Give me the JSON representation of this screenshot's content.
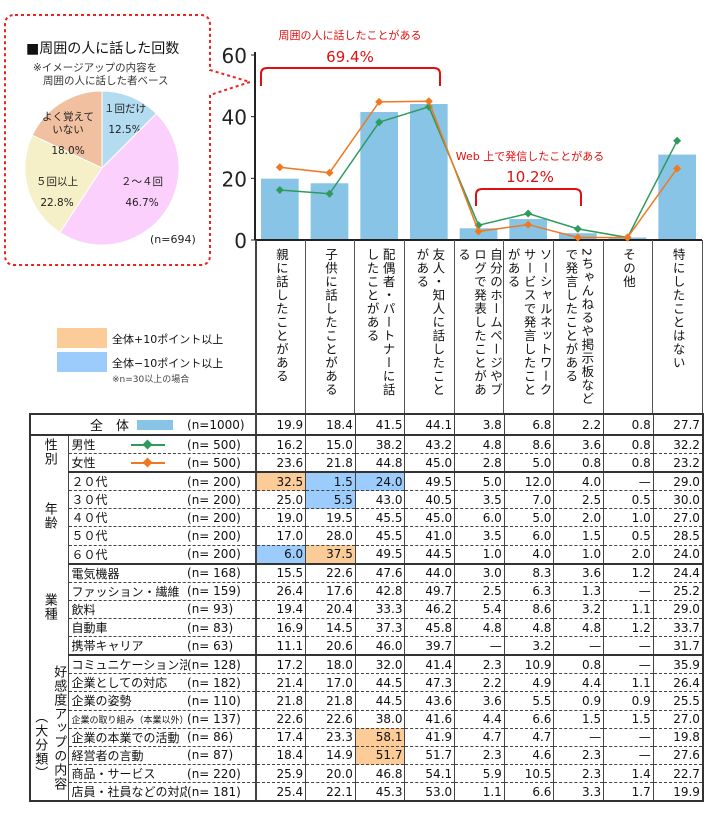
{
  "pie": {
    "title": "■周囲の人に話した回数",
    "note_line1": "※イメージアップの内容を",
    "note_line2": "周囲の人に話した者ベース",
    "n_label": "(n=694)",
    "slices": [
      {
        "label": "１回だけ",
        "value": 12.5,
        "value_label": "12.5%",
        "color": "#b4dcf0"
      },
      {
        "label": "２～４回",
        "value": 46.7,
        "value_label": "46.7%",
        "color": "#fcd0fc"
      },
      {
        "label": "５回以上",
        "value": 22.8,
        "value_label": "22.8%",
        "color": "#f5f0c8"
      },
      {
        "label": "よく覚えて\nいない",
        "value": 18.0,
        "value_label": "18.0%",
        "color": "#f0c0a0"
      }
    ]
  },
  "legend": {
    "plus_label": "全体+10ポイント以上",
    "minus_label": "全体−10ポイント以上",
    "note": "※n=30以上の場合",
    "plus_color": "#fccc98",
    "minus_color": "#9cccfc"
  },
  "annotations": {
    "a1_text": "周囲の人に話したことがある",
    "a1_value": "69.4%",
    "a2_text": "Web 上で発信したことがある",
    "a2_value": "10.2%",
    "color": "#e01010"
  },
  "chart_data": {
    "type": "bar",
    "ylim": [
      0,
      60
    ],
    "yticks": [
      "0",
      "20",
      "40",
      "60"
    ],
    "categories": [
      "親に話したことがある",
      "子供に話したことがある",
      "配偶者・パートナーに話したことがある",
      "友人・知人に話したことがある",
      "自分のホームページやブログで発表したことがある",
      "ソーシャルネットワークサービスで発言したことがある",
      "2ちゃんねるや掲示板などで発言したことがある",
      "その他",
      "特にしたことはない"
    ],
    "bar_series": {
      "name": "全　体",
      "values": [
        19.9,
        18.4,
        41.5,
        44.1,
        3.8,
        6.8,
        2.2,
        0.8,
        27.7
      ],
      "color": "#88c4e6"
    },
    "line_series": [
      {
        "name": "男性",
        "values": [
          16.2,
          15.0,
          38.2,
          43.2,
          4.8,
          8.6,
          3.6,
          0.8,
          32.2
        ],
        "color": "#2e9a5c"
      },
      {
        "name": "女性",
        "values": [
          23.6,
          21.8,
          44.8,
          45.0,
          2.8,
          5.0,
          0.8,
          0.8,
          23.2
        ],
        "color": "#f07820"
      }
    ]
  },
  "table": {
    "rows": [
      {
        "group": "",
        "label": "全　体",
        "marker": "bar",
        "n": "(n=1000)",
        "v": [
          "19.9",
          "18.4",
          "41.5",
          "44.1",
          "3.8",
          "6.8",
          "2.2",
          "0.8",
          "27.7"
        ],
        "hl": [
          "",
          "",
          "",
          "",
          "",
          "",
          "",
          "",
          ""
        ]
      },
      {
        "group": "性別",
        "label": "男性",
        "marker": "male",
        "n": "(n=  500)",
        "v": [
          "16.2",
          "15.0",
          "38.2",
          "43.2",
          "4.8",
          "8.6",
          "3.6",
          "0.8",
          "32.2"
        ],
        "hl": [
          "",
          "",
          "",
          "",
          "",
          "",
          "",
          "",
          ""
        ]
      },
      {
        "group": "性別",
        "label": "女性",
        "marker": "female",
        "n": "(n=  500)",
        "v": [
          "23.6",
          "21.8",
          "44.8",
          "45.0",
          "2.8",
          "5.0",
          "0.8",
          "0.8",
          "23.2"
        ],
        "hl": [
          "",
          "",
          "",
          "",
          "",
          "",
          "",
          "",
          ""
        ]
      },
      {
        "group": "年齢",
        "label": "２０代",
        "n": "(n=  200)",
        "v": [
          "32.5",
          "1.5",
          "24.0",
          "49.5",
          "5.0",
          "12.0",
          "4.0",
          "—",
          "29.0"
        ],
        "hl": [
          "+",
          "-",
          "-",
          "",
          "",
          "",
          "",
          "",
          ""
        ]
      },
      {
        "group": "年齢",
        "label": "３０代",
        "n": "(n=  200)",
        "v": [
          "25.0",
          "5.5",
          "43.0",
          "40.5",
          "3.5",
          "7.0",
          "2.5",
          "0.5",
          "30.0"
        ],
        "hl": [
          "",
          "-",
          "",
          "",
          "",
          "",
          "",
          "",
          ""
        ]
      },
      {
        "group": "年齢",
        "label": "４０代",
        "n": "(n=  200)",
        "v": [
          "19.0",
          "19.5",
          "45.5",
          "45.0",
          "6.0",
          "5.0",
          "2.0",
          "1.0",
          "27.0"
        ],
        "hl": [
          "",
          "",
          "",
          "",
          "",
          "",
          "",
          "",
          ""
        ]
      },
      {
        "group": "年齢",
        "label": "５０代",
        "n": "(n=  200)",
        "v": [
          "17.0",
          "28.0",
          "45.5",
          "41.0",
          "3.5",
          "6.0",
          "1.5",
          "0.5",
          "28.5"
        ],
        "hl": [
          "",
          "",
          "",
          "",
          "",
          "",
          "",
          "",
          ""
        ]
      },
      {
        "group": "年齢",
        "label": "６０代",
        "n": "(n=  200)",
        "v": [
          "6.0",
          "37.5",
          "49.5",
          "44.5",
          "1.0",
          "4.0",
          "1.0",
          "2.0",
          "24.0"
        ],
        "hl": [
          "-",
          "+",
          "",
          "",
          "",
          "",
          "",
          "",
          ""
        ]
      },
      {
        "group": "業種",
        "label": "電気機器",
        "n": "(n=  168)",
        "v": [
          "15.5",
          "22.6",
          "47.6",
          "44.0",
          "3.0",
          "8.3",
          "3.6",
          "1.2",
          "24.4"
        ],
        "hl": [
          "",
          "",
          "",
          "",
          "",
          "",
          "",
          "",
          ""
        ]
      },
      {
        "group": "業種",
        "label": "ファッション・繊維",
        "n": "(n=  159)",
        "v": [
          "26.4",
          "17.6",
          "42.8",
          "49.7",
          "2.5",
          "6.3",
          "1.3",
          "—",
          "25.2"
        ],
        "hl": [
          "",
          "",
          "",
          "",
          "",
          "",
          "",
          "",
          ""
        ]
      },
      {
        "group": "業種",
        "label": "飲料",
        "n": "(n=   93)",
        "v": [
          "19.4",
          "20.4",
          "33.3",
          "46.2",
          "5.4",
          "8.6",
          "3.2",
          "1.1",
          "29.0"
        ],
        "hl": [
          "",
          "",
          "",
          "",
          "",
          "",
          "",
          "",
          ""
        ]
      },
      {
        "group": "業種",
        "label": "自動車",
        "n": "(n=   83)",
        "v": [
          "16.9",
          "14.5",
          "37.3",
          "45.8",
          "4.8",
          "4.8",
          "4.8",
          "1.2",
          "33.7"
        ],
        "hl": [
          "",
          "",
          "",
          "",
          "",
          "",
          "",
          "",
          ""
        ]
      },
      {
        "group": "業種",
        "label": "携帯キャリア",
        "n": "(n=   63)",
        "v": [
          "11.1",
          "20.6",
          "46.0",
          "39.7",
          "—",
          "3.2",
          "—",
          "—",
          "31.7"
        ],
        "hl": [
          "",
          "",
          "",
          "",
          "",
          "",
          "",
          "",
          ""
        ]
      },
      {
        "group": "好感度",
        "label": "コミュニケーション活動",
        "n": "(n=  128)",
        "v": [
          "17.2",
          "18.0",
          "32.0",
          "41.4",
          "2.3",
          "10.9",
          "0.8",
          "—",
          "35.9"
        ],
        "hl": [
          "",
          "",
          "",
          "",
          "",
          "",
          "",
          "",
          ""
        ]
      },
      {
        "group": "好感度",
        "label": "企業としての対応",
        "n": "(n=  182)",
        "v": [
          "21.4",
          "17.0",
          "44.5",
          "47.3",
          "2.2",
          "4.9",
          "4.4",
          "1.1",
          "26.4"
        ],
        "hl": [
          "",
          "",
          "",
          "",
          "",
          "",
          "",
          "",
          ""
        ]
      },
      {
        "group": "好感度",
        "label": "企業の姿勢",
        "n": "(n=  110)",
        "v": [
          "21.8",
          "21.8",
          "44.5",
          "43.6",
          "3.6",
          "5.5",
          "0.9",
          "0.9",
          "25.5"
        ],
        "hl": [
          "",
          "",
          "",
          "",
          "",
          "",
          "",
          "",
          ""
        ]
      },
      {
        "group": "好感度",
        "label": "企業の取り組み（本業以外）",
        "small": true,
        "n": "(n=  137)",
        "v": [
          "22.6",
          "22.6",
          "38.0",
          "41.6",
          "4.4",
          "6.6",
          "1.5",
          "1.5",
          "27.0"
        ],
        "hl": [
          "",
          "",
          "",
          "",
          "",
          "",
          "",
          "",
          ""
        ]
      },
      {
        "group": "好感度",
        "label": "企業の本業での活動",
        "n": "(n=   86)",
        "v": [
          "17.4",
          "23.3",
          "58.1",
          "41.9",
          "4.7",
          "4.7",
          "—",
          "—",
          "19.8"
        ],
        "hl": [
          "",
          "",
          "+",
          "",
          "",
          "",
          "",
          "",
          ""
        ]
      },
      {
        "group": "好感度",
        "label": "経営者の言動",
        "n": "(n=   87)",
        "v": [
          "18.4",
          "14.9",
          "51.7",
          "51.7",
          "2.3",
          "4.6",
          "2.3",
          "—",
          "27.6"
        ],
        "hl": [
          "",
          "",
          "+",
          "",
          "",
          "",
          "",
          "",
          ""
        ]
      },
      {
        "group": "好感度",
        "label": "商品・サービス",
        "n": "(n=  220)",
        "v": [
          "25.9",
          "20.0",
          "46.8",
          "54.1",
          "5.9",
          "10.5",
          "2.3",
          "1.4",
          "22.7"
        ],
        "hl": [
          "",
          "",
          "",
          "",
          "",
          "",
          "",
          "",
          ""
        ]
      },
      {
        "group": "好感度",
        "label": "店員・社員などの対応",
        "n": "(n=  181)",
        "v": [
          "25.4",
          "22.1",
          "45.3",
          "53.0",
          "1.1",
          "6.6",
          "3.3",
          "1.7",
          "19.9"
        ],
        "hl": [
          "",
          "",
          "",
          "",
          "",
          "",
          "",
          "",
          ""
        ]
      }
    ],
    "groups": {
      "性別": "性別",
      "年齢": "年齢",
      "業種": "業種",
      "好感度": "好感度アップの内容",
      "好感度_sub": "（大分類）"
    }
  }
}
